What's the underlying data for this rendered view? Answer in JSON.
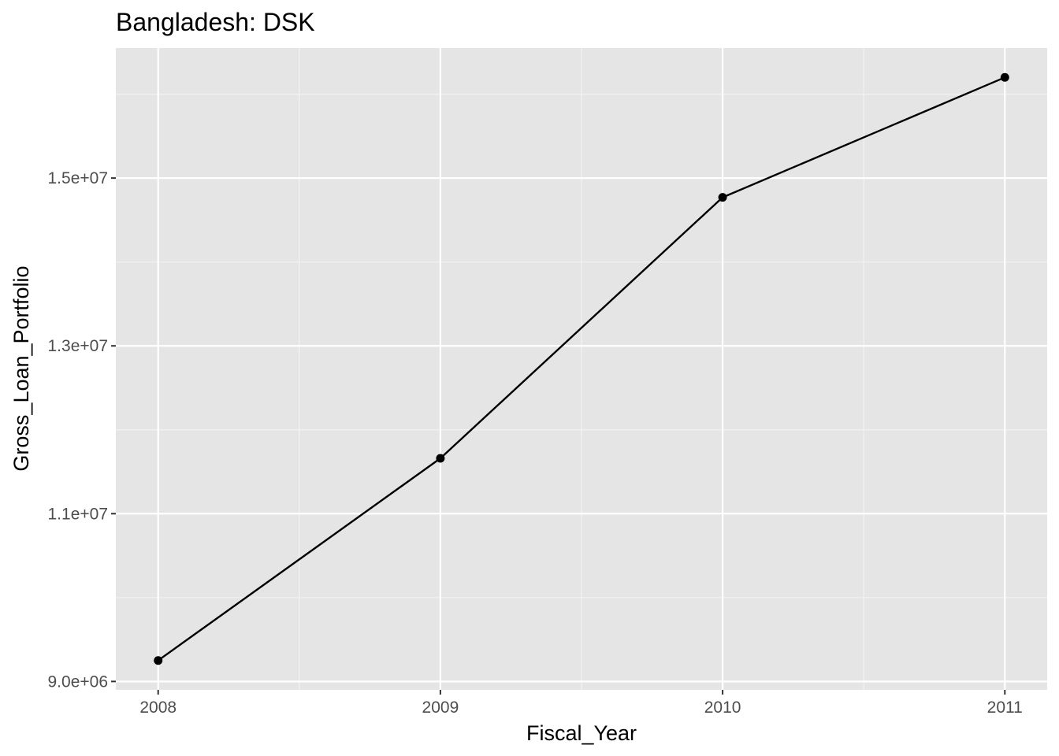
{
  "chart_data": {
    "type": "line",
    "title": "Bangladesh:  DSK",
    "xlabel": "Fiscal_Year",
    "ylabel": "Gross_Loan_Portfolio",
    "x": [
      2008,
      2009,
      2010,
      2011
    ],
    "x_tick_labels": [
      "2008",
      "2009",
      "2010",
      "2011"
    ],
    "y": [
      9250000,
      11660000,
      14770000,
      16200000
    ],
    "y_ticks": [
      9000000,
      11000000,
      13000000,
      15000000
    ],
    "y_tick_labels": [
      "9.0e+06",
      "1.1e+07",
      "1.3e+07",
      "1.5e+07"
    ],
    "xlim": [
      2007.85,
      2011.15
    ],
    "ylim": [
      8900000,
      16550000
    ],
    "grid": true,
    "colors": {
      "panel": "#e5e5e5",
      "grid_major": "#ffffff",
      "grid_minor": "#f2f2f2",
      "line": "#000000",
      "point": "#000000",
      "tick": "#333333"
    }
  }
}
